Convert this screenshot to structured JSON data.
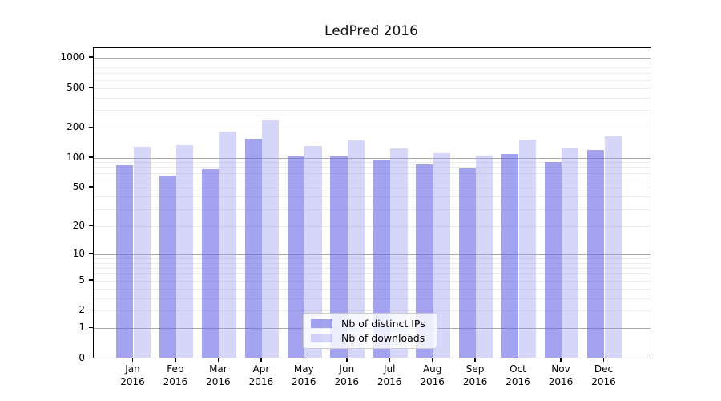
{
  "figure": {
    "title": "LedPred 2016"
  },
  "chart_data": {
    "type": "bar",
    "title": "LedPred 2016",
    "categories": [
      "Jan 2016",
      "Feb 2016",
      "Mar 2016",
      "Apr 2016",
      "May 2016",
      "Jun 2016",
      "Jul 2016",
      "Aug 2016",
      "Sep 2016",
      "Oct 2016",
      "Nov 2016",
      "Dec 2016"
    ],
    "series": [
      {
        "name": "Nb of distinct IPs",
        "base_color": "#6666e6",
        "alpha": 0.6,
        "rendered_color": "#a4a4f0",
        "values": [
          84,
          66,
          76,
          155,
          103,
          103,
          93,
          86,
          78,
          108,
          91,
          120
        ]
      },
      {
        "name": "Nb of downloads",
        "base_color": "#9999ee",
        "alpha": 0.4,
        "rendered_color": "#d6d6f7",
        "values": [
          129,
          134,
          183,
          236,
          132,
          148,
          125,
          110,
          105,
          152,
          126,
          164
        ]
      }
    ],
    "yscale": "log1p",
    "ylim": [
      0,
      1200
    ],
    "yticks": [
      0,
      1,
      2,
      5,
      10,
      20,
      50,
      100,
      200,
      500,
      1000
    ],
    "grid": {
      "major_values": [
        1,
        10,
        100,
        1000
      ],
      "minor_values": [
        2,
        3,
        4,
        5,
        6,
        7,
        8,
        9,
        20,
        30,
        40,
        50,
        60,
        70,
        80,
        90,
        200,
        300,
        400,
        500,
        600,
        700,
        800,
        900
      ],
      "major_color": "#aaaaaa",
      "minor_color": "#ebebeb"
    },
    "legend": {
      "position": "lower center",
      "entries": [
        "Nb of distinct IPs",
        "Nb of downloads"
      ]
    },
    "xlabel": "",
    "ylabel": ""
  }
}
